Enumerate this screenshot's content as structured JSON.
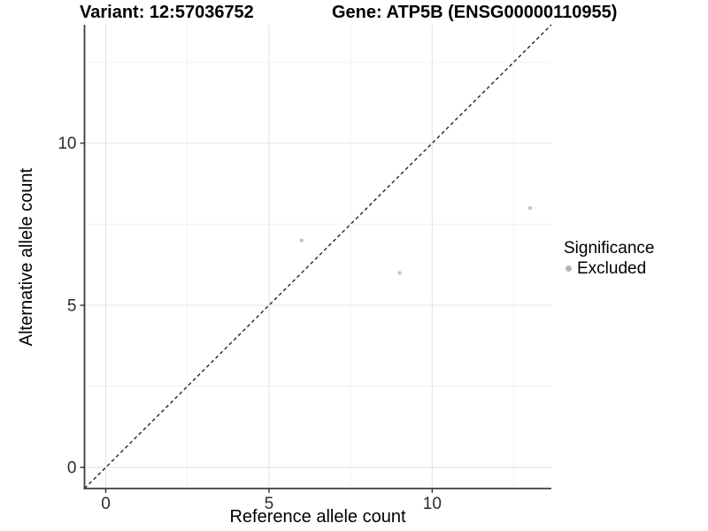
{
  "chart_data": {
    "type": "scatter",
    "title_left": "Variant: 12:57036752",
    "title_right": "Gene: ATP5B (ENSG00000110955)",
    "xlabel": "Reference allele count",
    "ylabel": "Alternative allele count",
    "xlim": [
      -0.65,
      13.65
    ],
    "ylim": [
      -0.65,
      13.65
    ],
    "x_ticks": [
      0,
      5,
      10
    ],
    "y_ticks": [
      0,
      5,
      10
    ],
    "x_minor_ticks": [
      2.5,
      7.5,
      12.5
    ],
    "y_minor_ticks": [
      2.5,
      7.5,
      12.5
    ],
    "grid": true,
    "identity_line": {
      "style": "dashed",
      "from": -0.65,
      "to": 13.65,
      "color": "#232323"
    },
    "series": [
      {
        "name": "Excluded",
        "color": "#c5c5c5",
        "point_radius": 2.2,
        "points": [
          {
            "x": 6,
            "y": 7
          },
          {
            "x": 9,
            "y": 6
          },
          {
            "x": 13,
            "y": 8
          }
        ]
      }
    ],
    "legend": {
      "title": "Significance",
      "position": "right",
      "entries": [
        {
          "label": "Excluded",
          "color": "#b4b4b4"
        }
      ]
    },
    "palette": {
      "grid_major": "#e4e4e4",
      "grid_minor": "#f1f1f1",
      "axis_line": "#3c3c3c",
      "tick_mark": "#333333",
      "tick_label": "#2b2b2b",
      "text": "#000000",
      "background": "#ffffff"
    }
  }
}
